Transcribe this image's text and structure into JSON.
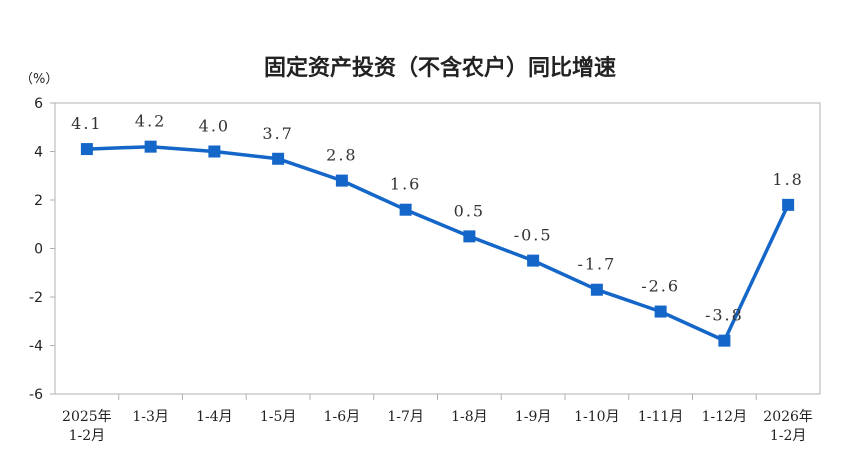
{
  "chart_data": {
    "type": "line",
    "title": "固定资产投资（不含农户）同比增速",
    "ylabel": "（%）",
    "xlabel": "",
    "ylim": [
      -6,
      6
    ],
    "yticks": [
      6,
      4,
      2,
      0,
      -2,
      -4,
      -6
    ],
    "grid": false,
    "categories": [
      [
        "2025年",
        "1-2月"
      ],
      [
        "1-3月"
      ],
      [
        "1-4月"
      ],
      [
        "1-5月"
      ],
      [
        "1-6月"
      ],
      [
        "1-7月"
      ],
      [
        "1-8月"
      ],
      [
        "1-9月"
      ],
      [
        "1-10月"
      ],
      [
        "1-11月"
      ],
      [
        "1-12月"
      ],
      [
        "2026年",
        "1-2月"
      ]
    ],
    "values": [
      4.1,
      4.2,
      4.0,
      3.7,
      2.8,
      1.6,
      0.5,
      -0.5,
      -1.7,
      -2.6,
      -3.8,
      1.8
    ],
    "data_labels": [
      "4.1",
      "4.2",
      "4.0",
      "3.7",
      "2.8",
      "1.6",
      "0.5",
      "-0.5",
      "-1.7",
      "-2.6",
      "-3.8",
      "1.8"
    ],
    "colors": {
      "series": "#1466c8",
      "axis": "#b0b0b0",
      "text": "#222222"
    }
  }
}
